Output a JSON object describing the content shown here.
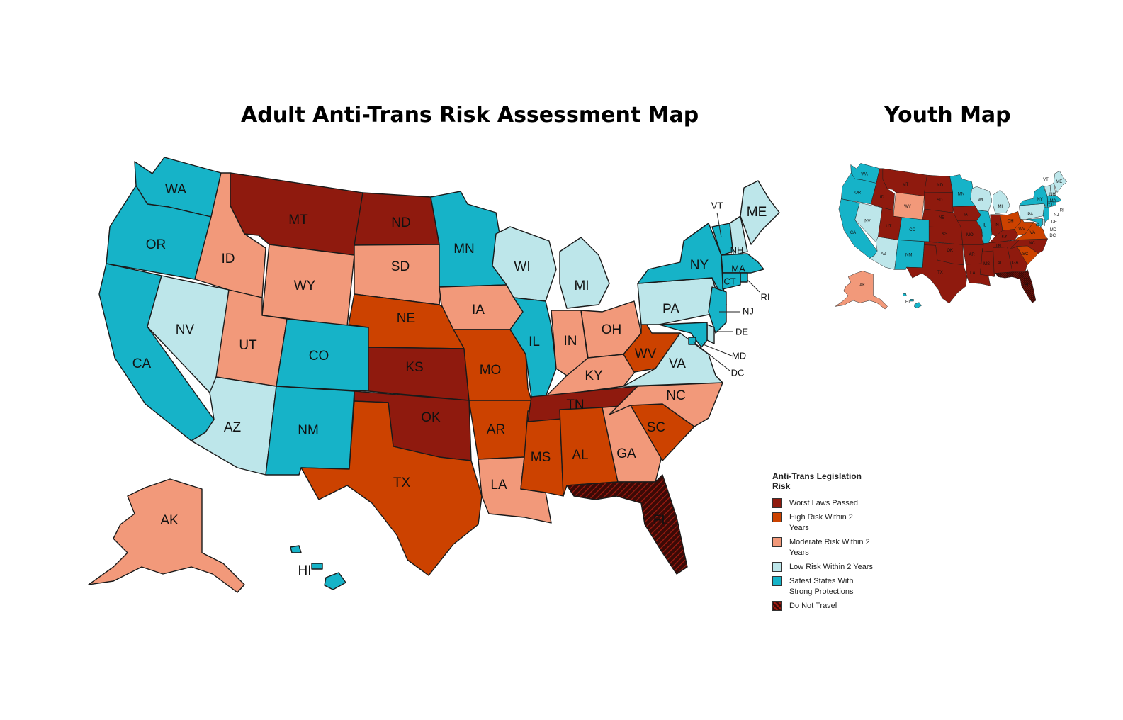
{
  "titles": {
    "main": "Adult Anti-Trans Risk Assessment Map",
    "youth": "Youth Map"
  },
  "colors": {
    "worst": "#8f1a0e",
    "high": "#cc4200",
    "moderate": "#f2997a",
    "low": "#bde6ea",
    "safest": "#16b3c8",
    "do_not_travel": "#3b0a06"
  },
  "legend": {
    "title": "Anti-Trans Legislation Risk",
    "items": [
      {
        "key": "worst",
        "label": "Worst Laws Passed"
      },
      {
        "key": "high",
        "label": "High Risk Within 2 Years"
      },
      {
        "key": "moderate",
        "label": "Moderate Risk Within 2 Years"
      },
      {
        "key": "low",
        "label": "Low Risk Within 2 Years"
      },
      {
        "key": "safest",
        "label": "Safest States With Strong Protections"
      },
      {
        "key": "do_not_travel",
        "label": "Do Not Travel"
      }
    ]
  },
  "adult_map": {
    "WA": "safest",
    "OR": "safest",
    "CA": "safest",
    "NV": "low",
    "ID": "moderate",
    "MT": "worst",
    "WY": "moderate",
    "UT": "moderate",
    "AZ": "low",
    "CO": "safest",
    "NM": "safest",
    "ND": "worst",
    "SD": "moderate",
    "NE": "high",
    "KS": "worst",
    "OK": "worst",
    "TX": "high",
    "MN": "safest",
    "IA": "moderate",
    "MO": "high",
    "AR": "high",
    "LA": "moderate",
    "WI": "low",
    "IL": "safest",
    "MS": "high",
    "MI": "low",
    "IN": "moderate",
    "OH": "moderate",
    "KY": "moderate",
    "TN": "worst",
    "AL": "high",
    "GA": "moderate",
    "FL": "do_not_travel",
    "SC": "high",
    "NC": "moderate",
    "VA": "low",
    "WV": "high",
    "PA": "low",
    "NY": "safest",
    "VT": "safest",
    "NH": "low",
    "ME": "low",
    "MA": "safest",
    "RI": "safest",
    "CT": "safest",
    "NJ": "safest",
    "DE": "low",
    "MD": "safest",
    "DC": "safest",
    "AK": "moderate",
    "HI": "safest"
  },
  "youth_map": {
    "WA": "safest",
    "OR": "safest",
    "CA": "safest",
    "NV": "low",
    "ID": "worst",
    "MT": "worst",
    "WY": "moderate",
    "UT": "worst",
    "AZ": "low",
    "CO": "safest",
    "NM": "safest",
    "ND": "worst",
    "SD": "worst",
    "NE": "worst",
    "KS": "worst",
    "OK": "worst",
    "TX": "worst",
    "MN": "safest",
    "IA": "worst",
    "MO": "worst",
    "AR": "worst",
    "LA": "worst",
    "WI": "low",
    "IL": "safest",
    "MS": "worst",
    "MI": "low",
    "IN": "worst",
    "OH": "high",
    "KY": "worst",
    "TN": "worst",
    "AL": "worst",
    "GA": "worst",
    "FL": "do_not_travel",
    "SC": "high",
    "NC": "worst",
    "VA": "high",
    "WV": "high",
    "PA": "low",
    "NY": "safest",
    "VT": "low",
    "NH": "low",
    "ME": "low",
    "MA": "safest",
    "RI": "safest",
    "CT": "safest",
    "NJ": "safest",
    "DE": "low",
    "MD": "safest",
    "DC": "safest",
    "AK": "moderate",
    "HI": "safest"
  },
  "labels": {
    "WA": "WA",
    "OR": "OR",
    "CA": "CA",
    "NV": "NV",
    "ID": "ID",
    "MT": "MT",
    "WY": "WY",
    "UT": "UT",
    "AZ": "AZ",
    "CO": "CO",
    "NM": "NM",
    "ND": "ND",
    "SD": "SD",
    "NE": "NE",
    "KS": "KS",
    "OK": "OK",
    "TX": "TX",
    "MN": "MN",
    "IA": "IA",
    "MO": "MO",
    "AR": "AR",
    "LA": "LA",
    "WI": "WI",
    "IL": "IL",
    "MS": "MS",
    "MI": "MI",
    "IN": "IN",
    "OH": "OH",
    "KY": "KY",
    "TN": "TN",
    "AL": "AL",
    "GA": "GA",
    "FL": "FL",
    "SC": "SC",
    "NC": "NC",
    "VA": "VA",
    "WV": "WV",
    "PA": "PA",
    "NY": "NY",
    "VT": "VT",
    "NH": "NH",
    "ME": "ME",
    "MA": "MA",
    "RI": "RI",
    "CT": "CT",
    "NJ": "NJ",
    "DE": "DE",
    "MD": "MD",
    "DC": "DC",
    "AK": "AK",
    "HI": "HI"
  }
}
